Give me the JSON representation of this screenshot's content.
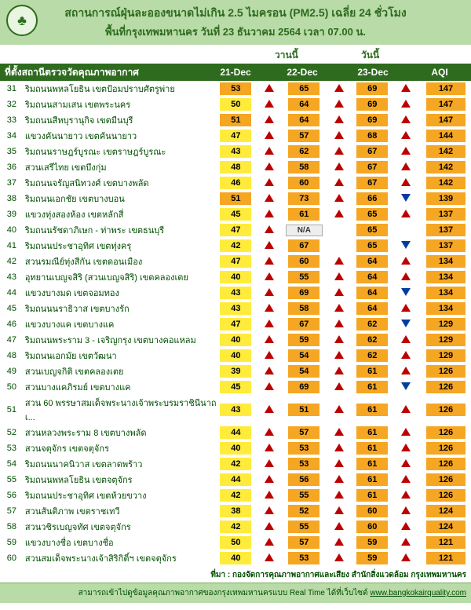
{
  "header": {
    "title1": "สถานการณ์ฝุ่นละอองขนาดไม่เกิน 2.5 ไมครอน (PM2.5) เฉลี่ย 24 ชั่วโมง",
    "title2": "พื้นที่กรุงเทพมหานคร วันที่ 23 ธันวาคม 2564 เวลา 07.00 น.",
    "logo": "♣"
  },
  "subhead": {
    "yesterday": "วานนี้",
    "today": "วันนี้"
  },
  "colhead": {
    "location": "ที่ตั้งสถานีตรวจวัดคุณภาพอากาศ",
    "d1": "21-Dec",
    "d2": "22-Dec",
    "d3": "23-Dec",
    "aqi": "AQI"
  },
  "colors": {
    "yellow": "#ffeb3b",
    "orange": "#f5a623",
    "headerBg": "#b8dba8",
    "darkGreen": "#2e6b1e",
    "arrowRed": "#bd0000",
    "arrowBlue": "#003e9c"
  },
  "rows": [
    {
      "idx": 31,
      "name": "ริมถนนพหลโยธิน เขตป้อมปราบศัตรูพ่าย",
      "v1": 53,
      "c1": "orange",
      "a1": "up",
      "v2": 65,
      "c2": "orange",
      "a2": "up",
      "v3": 69,
      "c3": "orange",
      "a3": "up",
      "aqi": 147
    },
    {
      "idx": 32,
      "name": "ริมถนนสามเสน เขตพระนคร",
      "v1": 50,
      "c1": "yellow",
      "a1": "up",
      "v2": 64,
      "c2": "orange",
      "a2": "up",
      "v3": 69,
      "c3": "orange",
      "a3": "up",
      "aqi": 147
    },
    {
      "idx": 33,
      "name": "ริมถนนสีหบุรานุกิจ เขตมีนบุรี",
      "v1": 51,
      "c1": "orange",
      "a1": "up",
      "v2": 64,
      "c2": "orange",
      "a2": "up",
      "v3": 69,
      "c3": "orange",
      "a3": "up",
      "aqi": 147
    },
    {
      "idx": 34,
      "name": "แขวงคันนายาว เขตคันนายาว",
      "v1": 47,
      "c1": "yellow",
      "a1": "up",
      "v2": 57,
      "c2": "orange",
      "a2": "up",
      "v3": 68,
      "c3": "orange",
      "a3": "up",
      "aqi": 144
    },
    {
      "idx": 35,
      "name": "ริมถนนราษฎร์บูรณะ เขตราษฎร์บูรณะ",
      "v1": 43,
      "c1": "yellow",
      "a1": "up",
      "v2": 62,
      "c2": "orange",
      "a2": "up",
      "v3": 67,
      "c3": "orange",
      "a3": "up",
      "aqi": 142
    },
    {
      "idx": 36,
      "name": "สวนเสรีไทย เขตบึงกุ่ม",
      "v1": 48,
      "c1": "yellow",
      "a1": "up",
      "v2": 58,
      "c2": "orange",
      "a2": "up",
      "v3": 67,
      "c3": "orange",
      "a3": "up",
      "aqi": 142
    },
    {
      "idx": 37,
      "name": "ริมถนนจรัญสนิทวงศ์ เขตบางพลัด",
      "v1": 46,
      "c1": "yellow",
      "a1": "up",
      "v2": 60,
      "c2": "orange",
      "a2": "up",
      "v3": 67,
      "c3": "orange",
      "a3": "up",
      "aqi": 142
    },
    {
      "idx": 38,
      "name": "ริมถนนเอกชัย เขตบางบอน",
      "v1": 51,
      "c1": "orange",
      "a1": "up",
      "v2": 73,
      "c2": "orange",
      "a2": "up",
      "v3": 66,
      "c3": "orange",
      "a3": "down",
      "aqi": 139
    },
    {
      "idx": 39,
      "name": "แขวงทุ่งสองห้อง เขตหลักสี่",
      "v1": 45,
      "c1": "yellow",
      "a1": "up",
      "v2": 61,
      "c2": "orange",
      "a2": "up",
      "v3": 65,
      "c3": "orange",
      "a3": "up",
      "aqi": 137
    },
    {
      "idx": 40,
      "name": "ริมถนนรัชดาภิเษก - ท่าพระ เขตธนบุรี",
      "v1": 47,
      "c1": "yellow",
      "a1": "up",
      "v2": null,
      "c2": "na",
      "a2": "",
      "v3": 65,
      "c3": "orange",
      "a3": "",
      "aqi": 137
    },
    {
      "idx": 41,
      "name": "ริมถนนประชาอุทิศ เขตทุ่งครุ",
      "v1": 42,
      "c1": "yellow",
      "a1": "up",
      "v2": 67,
      "c2": "orange",
      "a2": "",
      "v3": 65,
      "c3": "orange",
      "a3": "down",
      "aqi": 137
    },
    {
      "idx": 42,
      "name": "สวนรมณีย์ทุ่งสีกัน เขตดอนเมือง",
      "v1": 47,
      "c1": "yellow",
      "a1": "up",
      "v2": 60,
      "c2": "orange",
      "a2": "up",
      "v3": 64,
      "c3": "orange",
      "a3": "up",
      "aqi": 134
    },
    {
      "idx": 43,
      "name": "อุทยานเบญจสิริ (สวนเบญจสิริ) เขตคลองเตย",
      "v1": 40,
      "c1": "yellow",
      "a1": "up",
      "v2": 55,
      "c2": "orange",
      "a2": "up",
      "v3": 64,
      "c3": "orange",
      "a3": "up",
      "aqi": 134
    },
    {
      "idx": 44,
      "name": "แขวงบางมด เขตจอมทอง",
      "v1": 43,
      "c1": "yellow",
      "a1": "up",
      "v2": 69,
      "c2": "orange",
      "a2": "up",
      "v3": 64,
      "c3": "orange",
      "a3": "down",
      "aqi": 134
    },
    {
      "idx": 45,
      "name": "ริมถนนนราธิวาส เขตบางรัก",
      "v1": 43,
      "c1": "yellow",
      "a1": "up",
      "v2": 58,
      "c2": "orange",
      "a2": "up",
      "v3": 64,
      "c3": "orange",
      "a3": "up",
      "aqi": 134
    },
    {
      "idx": 46,
      "name": "แขวงบางแค เขตบางแค",
      "v1": 47,
      "c1": "yellow",
      "a1": "up",
      "v2": 67,
      "c2": "orange",
      "a2": "up",
      "v3": 62,
      "c3": "orange",
      "a3": "down",
      "aqi": 129
    },
    {
      "idx": 47,
      "name": "ริมถนนพระราม 3 - เจริญกรุง เขตบางคอแหลม",
      "v1": 40,
      "c1": "yellow",
      "a1": "up",
      "v2": 59,
      "c2": "orange",
      "a2": "up",
      "v3": 62,
      "c3": "orange",
      "a3": "up",
      "aqi": 129
    },
    {
      "idx": 48,
      "name": "ริมถนนเอกมัย เขตวัฒนา",
      "v1": 40,
      "c1": "yellow",
      "a1": "up",
      "v2": 54,
      "c2": "orange",
      "a2": "up",
      "v3": 62,
      "c3": "orange",
      "a3": "up",
      "aqi": 129
    },
    {
      "idx": 49,
      "name": "สวนเบญจกิติ เขตคลองเตย",
      "v1": 39,
      "c1": "yellow",
      "a1": "up",
      "v2": 54,
      "c2": "orange",
      "a2": "up",
      "v3": 61,
      "c3": "orange",
      "a3": "up",
      "aqi": 126
    },
    {
      "idx": 50,
      "name": "สวนบางแคภิรมย์ เขตบางแค",
      "v1": 45,
      "c1": "yellow",
      "a1": "up",
      "v2": 69,
      "c2": "orange",
      "a2": "up",
      "v3": 61,
      "c3": "orange",
      "a3": "down",
      "aqi": 126
    },
    {
      "idx": 51,
      "name": "สวน 60 พรรษาสมเด็จพระนางเจ้าพระบรมราชินีนาถ เ...",
      "v1": 43,
      "c1": "yellow",
      "a1": "up",
      "v2": 51,
      "c2": "orange",
      "a2": "up",
      "v3": 61,
      "c3": "orange",
      "a3": "up",
      "aqi": 126
    },
    {
      "idx": 52,
      "name": "สวนหลวงพระราม 8 เขตบางพลัด",
      "v1": 44,
      "c1": "yellow",
      "a1": "up",
      "v2": 57,
      "c2": "orange",
      "a2": "up",
      "v3": 61,
      "c3": "orange",
      "a3": "up",
      "aqi": 126
    },
    {
      "idx": 53,
      "name": "สวนจตุจักร เขตจตุจักร",
      "v1": 40,
      "c1": "yellow",
      "a1": "up",
      "v2": 53,
      "c2": "orange",
      "a2": "up",
      "v3": 61,
      "c3": "orange",
      "a3": "up",
      "aqi": 126
    },
    {
      "idx": 54,
      "name": "ริมถนนนาคนิวาส เขตลาดพร้าว",
      "v1": 42,
      "c1": "yellow",
      "a1": "up",
      "v2": 53,
      "c2": "orange",
      "a2": "up",
      "v3": 61,
      "c3": "orange",
      "a3": "up",
      "aqi": 126
    },
    {
      "idx": 55,
      "name": "ริมถนนพหลโยธิน เขตจตุจักร",
      "v1": 44,
      "c1": "yellow",
      "a1": "up",
      "v2": 56,
      "c2": "orange",
      "a2": "up",
      "v3": 61,
      "c3": "orange",
      "a3": "up",
      "aqi": 126
    },
    {
      "idx": 56,
      "name": "ริมถนนประชาอุทิศ เขตห้วยขวาง",
      "v1": 42,
      "c1": "yellow",
      "a1": "up",
      "v2": 55,
      "c2": "orange",
      "a2": "up",
      "v3": 61,
      "c3": "orange",
      "a3": "up",
      "aqi": 126
    },
    {
      "idx": 57,
      "name": "สวนสันติภาพ เขตราชเทวี",
      "v1": 38,
      "c1": "yellow",
      "a1": "up",
      "v2": 52,
      "c2": "orange",
      "a2": "up",
      "v3": 60,
      "c3": "orange",
      "a3": "up",
      "aqi": 124
    },
    {
      "idx": 58,
      "name": "สวนวชิรเบญจทัศ เขตจตุจักร",
      "v1": 42,
      "c1": "yellow",
      "a1": "up",
      "v2": 55,
      "c2": "orange",
      "a2": "up",
      "v3": 60,
      "c3": "orange",
      "a3": "up",
      "aqi": 124
    },
    {
      "idx": 59,
      "name": "แขวงบางชื่อ เขตบางชื่อ",
      "v1": 50,
      "c1": "yellow",
      "a1": "up",
      "v2": 57,
      "c2": "orange",
      "a2": "up",
      "v3": 59,
      "c3": "orange",
      "a3": "up",
      "aqi": 121
    },
    {
      "idx": 60,
      "name": "สวนสมเด็จพระนางเจ้าสิริกิติ์ฯ เขตจตุจักร",
      "v1": 40,
      "c1": "yellow",
      "a1": "up",
      "v2": 53,
      "c2": "orange",
      "a2": "up",
      "v3": 59,
      "c3": "orange",
      "a3": "up",
      "aqi": 121
    }
  ],
  "footer": {
    "source": "ที่มา : กองจัดการคุณภาพอากาศและเสียง สำนักสิ่งแวดล้อม กรุงเทพมหานคร",
    "realtime": "สามารถเข้าไปดูข้อมูลคุณภาพอากาศของกรุงเทพมหานครแบบ Real Time ได้ที่เว็บไซต์ ",
    "url": "www.bangkokairquality.com"
  },
  "na_label": "N/A"
}
